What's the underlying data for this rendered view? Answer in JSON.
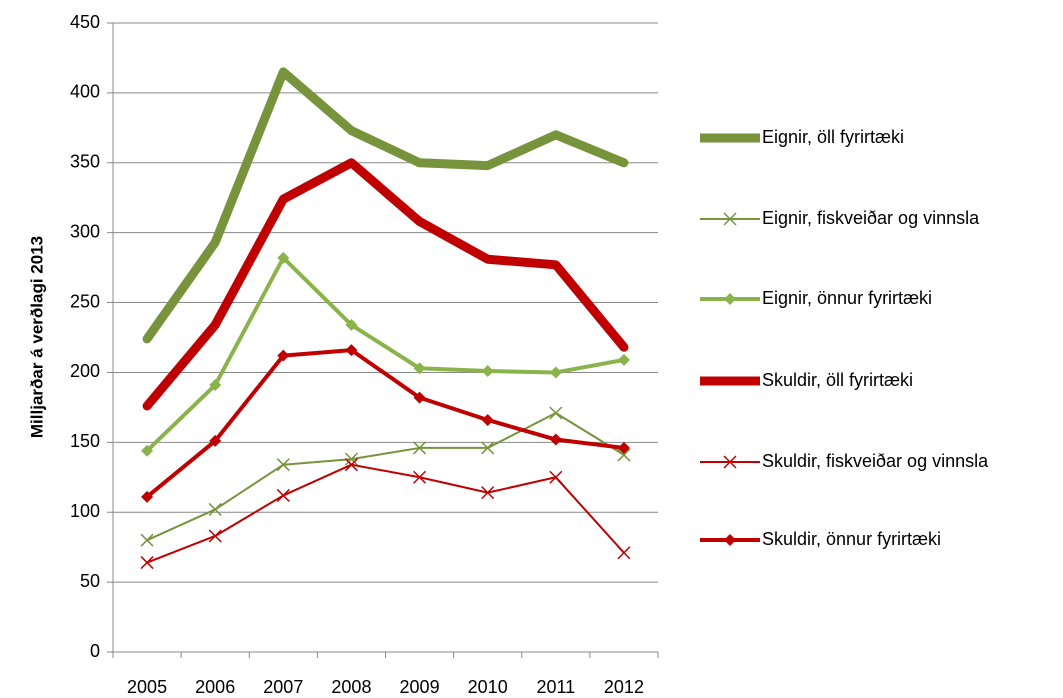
{
  "chart_data": {
    "type": "line",
    "y_label": "Milljarðar á verðlagi 2013",
    "categories": [
      "2005",
      "2006",
      "2007",
      "2008",
      "2009",
      "2010",
      "2011",
      "2012"
    ],
    "ylim": [
      0,
      450
    ],
    "yticks": [
      0,
      50,
      100,
      150,
      200,
      250,
      300,
      350,
      400,
      450
    ],
    "grid": true,
    "legend": "right",
    "series": [
      {
        "name": "Eignir, öll fyrirtæki",
        "color": "#77933c",
        "width": 9,
        "marker": "none",
        "values": [
          224,
          293,
          415,
          373,
          350,
          348,
          370,
          350
        ]
      },
      {
        "name": "Eignir, fiskveiðar og vinnsla",
        "color": "#77933c",
        "width": 2,
        "marker": "x",
        "values": [
          80,
          102,
          134,
          138,
          146,
          146,
          171,
          141
        ]
      },
      {
        "name": "Eignir, önnur fyrirtæki",
        "color": "#8bb34c",
        "width": 4,
        "marker": "diamond",
        "values": [
          144,
          191,
          282,
          234,
          203,
          201,
          200,
          209
        ]
      },
      {
        "name": "Skuldir, öll fyrirtæki",
        "color": "#c00000",
        "width": 9,
        "marker": "none",
        "values": [
          176,
          234,
          324,
          350,
          308,
          281,
          277,
          218
        ]
      },
      {
        "name": "Skuldir, fiskveiðar og vinnsla",
        "color": "#c00000",
        "width": 2,
        "marker": "x",
        "values": [
          64,
          83,
          112,
          134,
          125,
          114,
          125,
          71
        ]
      },
      {
        "name": "Skuldir, önnur fyrirtæki",
        "color": "#c00000",
        "width": 4,
        "marker": "diamond",
        "values": [
          111,
          151,
          212,
          216,
          182,
          166,
          152,
          146
        ]
      }
    ]
  }
}
